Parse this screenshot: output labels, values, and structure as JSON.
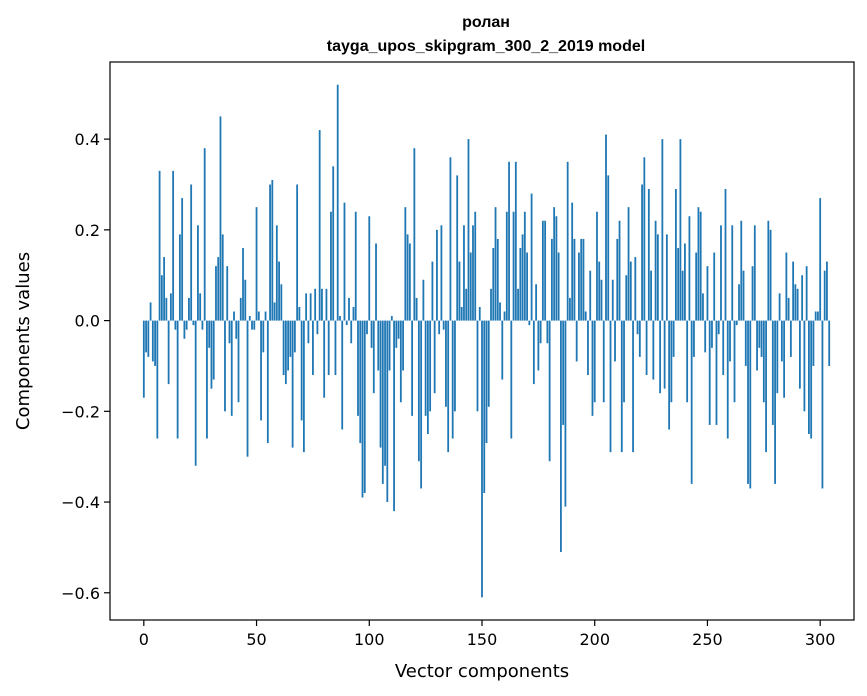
{
  "chart_data": {
    "type": "bar",
    "title_line1": "ролан",
    "title_line2": "tayga_upos_skipgram_300_2_2019 model",
    "xlabel": "Vector components",
    "ylabel": "Components values",
    "xlim": [
      -15,
      315
    ],
    "ylim": [
      -0.66,
      0.57
    ],
    "xticks": [
      0,
      50,
      100,
      150,
      200,
      250,
      300
    ],
    "xtick_labels": [
      "0",
      "50",
      "100",
      "150",
      "200",
      "250",
      "300"
    ],
    "yticks": [
      -0.6,
      -0.4,
      -0.2,
      0.0,
      0.2,
      0.4
    ],
    "ytick_labels": [
      "−0.6",
      "−0.4",
      "−0.2",
      "0.0",
      "0.2",
      "0.4"
    ],
    "bar_color": "#1f77b4",
    "bar_width": 0.8,
    "grid": false,
    "values": [
      -0.17,
      -0.07,
      -0.08,
      0.04,
      -0.09,
      -0.1,
      -0.26,
      0.33,
      0.1,
      0.14,
      0.05,
      -0.14,
      0.06,
      0.33,
      -0.02,
      -0.26,
      0.19,
      0.27,
      -0.04,
      -0.02,
      0.05,
      0.3,
      -0.01,
      -0.32,
      0.21,
      0.06,
      -0.02,
      0.38,
      -0.26,
      -0.06,
      -0.15,
      -0.13,
      0.12,
      0.14,
      0.45,
      0.19,
      -0.2,
      0.12,
      -0.05,
      -0.21,
      0.02,
      -0.04,
      -0.18,
      0.05,
      0.16,
      0.09,
      -0.3,
      0.01,
      -0.02,
      -0.02,
      0.25,
      0.02,
      -0.22,
      -0.07,
      0.02,
      -0.27,
      0.3,
      0.31,
      0.04,
      0.21,
      0.13,
      0.08,
      -0.12,
      -0.14,
      -0.11,
      -0.08,
      -0.28,
      -0.07,
      0.3,
      0.03,
      -0.22,
      -0.29,
      0.06,
      -0.05,
      0.06,
      -0.12,
      0.07,
      -0.03,
      0.42,
      0.07,
      -0.17,
      0.07,
      -0.12,
      0.24,
      0.34,
      -0.12,
      0.52,
      0.01,
      -0.24,
      0.26,
      -0.01,
      0.05,
      -0.05,
      0.03,
      0.24,
      -0.21,
      -0.27,
      -0.39,
      -0.38,
      -0.03,
      0.23,
      -0.06,
      -0.16,
      0.17,
      -0.11,
      -0.28,
      -0.36,
      -0.32,
      -0.4,
      -0.11,
      0.01,
      -0.42,
      -0.06,
      -0.04,
      -0.18,
      -0.11,
      0.25,
      0.19,
      0.17,
      -0.21,
      0.38,
      0.05,
      -0.31,
      -0.37,
      0.09,
      -0.21,
      -0.25,
      -0.2,
      0.13,
      -0.16,
      0.2,
      -0.03,
      0.21,
      -0.02,
      -0.19,
      -0.29,
      0.36,
      -0.26,
      -0.2,
      0.32,
      0.13,
      0.03,
      0.21,
      0.07,
      0.4,
      0.15,
      0.21,
      0.24,
      -0.2,
      0.03,
      -0.61,
      -0.38,
      -0.27,
      -0.19,
      0.07,
      0.16,
      0.25,
      0.18,
      0.04,
      -0.13,
      0.02,
      0.24,
      0.35,
      -0.26,
      0.24,
      0.35,
      0.07,
      0.16,
      0.19,
      0.24,
      0.15,
      -0.01,
      0.28,
      -0.14,
      0.08,
      -0.11,
      -0.05,
      0.22,
      0.22,
      -0.05,
      -0.31,
      0.18,
      0.25,
      0.23,
      0.15,
      -0.51,
      -0.23,
      -0.41,
      0.35,
      0.05,
      0.26,
      0.18,
      -0.09,
      0.15,
      0.18,
      0.18,
      0.02,
      -0.12,
      0.11,
      -0.21,
      -0.18,
      0.24,
      0.13,
      0.09,
      -0.18,
      0.41,
      0.32,
      -0.29,
      0.09,
      -0.09,
      0.18,
      0.22,
      -0.29,
      -0.18,
      0.1,
      0.25,
      0.13,
      -0.29,
      0.14,
      -0.03,
      -0.08,
      0.3,
      0.36,
      -0.12,
      0.29,
      0.11,
      -0.13,
      0.22,
      0.19,
      -0.16,
      0.4,
      -0.15,
      0.19,
      -0.24,
      -0.18,
      -0.08,
      0.29,
      0.16,
      0.4,
      0.11,
      0.17,
      -0.18,
      0.23,
      -0.36,
      -0.08,
      0.15,
      0.25,
      0.24,
      0.06,
      -0.07,
      0.12,
      -0.23,
      -0.06,
      0.15,
      -0.23,
      -0.03,
      0.21,
      -0.12,
      0.29,
      -0.26,
      -0.09,
      0.21,
      -0.18,
      -0.01,
      0.08,
      0.22,
      0.11,
      -0.1,
      -0.36,
      -0.37,
      0.12,
      0.21,
      -0.11,
      -0.06,
      -0.08,
      -0.18,
      -0.29,
      0.22,
      0.2,
      -0.23,
      -0.36,
      -0.16,
      0.06,
      -0.09,
      -0.17,
      0.15,
      0.05,
      -0.08,
      0.13,
      0.08,
      0.07,
      -0.15,
      0.1,
      -0.2,
      0.12,
      -0.25,
      -0.26,
      -0.1,
      0.02,
      0.02,
      0.27,
      -0.37,
      0.11,
      0.13,
      -0.1
    ]
  }
}
